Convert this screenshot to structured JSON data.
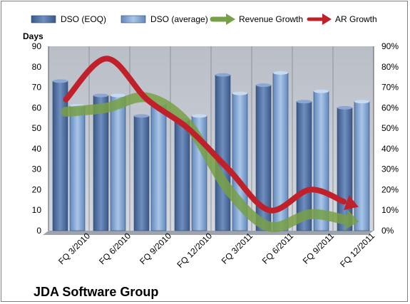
{
  "chart_data": {
    "type": "bar",
    "title": "",
    "footer_label": "JDA Software Group",
    "y_left_title": "Days",
    "ylim_left": [
      0,
      90
    ],
    "y_left_ticks": [
      "0",
      "10",
      "20",
      "30",
      "40",
      "50",
      "60",
      "70",
      "80",
      "90"
    ],
    "ylim_right": [
      0,
      90
    ],
    "y_right_ticks": [
      "0%",
      "10%",
      "20%",
      "30%",
      "40%",
      "50%",
      "60%",
      "70%",
      "80%",
      "90%"
    ],
    "categories": [
      "FQ 3/2010",
      "FQ 6/2010",
      "FQ 9/2010",
      "FQ 12/2010",
      "FQ 3/2011",
      "FQ 6/2011",
      "FQ 9/2011",
      "FQ 12/2011"
    ],
    "grid": "vertical",
    "legend_position": "top",
    "series": [
      {
        "name": "DSO (EOQ)",
        "kind": "bar",
        "axis": "left",
        "color": "#4f6ea0",
        "values": [
          73,
          66,
          56,
          54,
          76,
          71,
          63,
          60
        ]
      },
      {
        "name": "DSO (average)",
        "kind": "bar",
        "axis": "left",
        "color": "#7fa3cf",
        "values": [
          61,
          66,
          62,
          56,
          67,
          77,
          68,
          63
        ]
      },
      {
        "name": "Revenue Growth",
        "kind": "arrow-line",
        "axis": "right",
        "color": "#78a046",
        "values": [
          58,
          60,
          65,
          52,
          20,
          2,
          8,
          5
        ]
      },
      {
        "name": "AR Growth",
        "kind": "arrow-line",
        "axis": "right",
        "color": "#c0202a",
        "values": [
          64,
          84,
          64,
          50,
          30,
          10,
          20,
          13
        ]
      }
    ]
  }
}
